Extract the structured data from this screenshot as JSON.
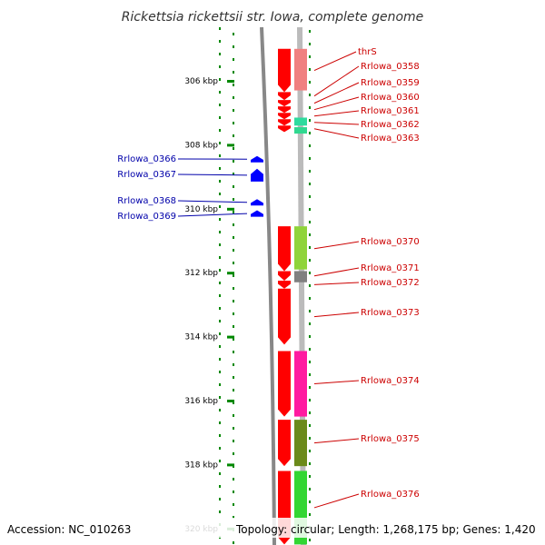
{
  "title": "Rickettsia rickettsii str. Iowa, complete genome",
  "accession": "Accession: NC_010263",
  "topology": "Topology: circular; Length: 1,268,175 bp; Genes: 1,420",
  "axis": {
    "ticks": [
      {
        "label": "306 kbp",
        "value": 306
      },
      {
        "label": "308 kbp",
        "value": 308
      },
      {
        "label": "310 kbp",
        "value": 310
      },
      {
        "label": "312 kbp",
        "value": 312
      },
      {
        "label": "314 kbp",
        "value": 314
      },
      {
        "label": "316 kbp",
        "value": 316
      },
      {
        "label": "318 kbp",
        "value": 318
      },
      {
        "label": "320 kbp",
        "value": 320
      }
    ]
  },
  "colors": {
    "forward_gene": "#ff0000",
    "reverse_gene": "#0000ff",
    "forward_label": "#cc0000",
    "reverse_label": "#0000aa",
    "tick_green": "#008800",
    "backbone": "#888888"
  },
  "forward_genes": [
    {
      "name": "thrS",
      "start": 305.0,
      "end": 306.35
    },
    {
      "name": "Rrlowa_0358",
      "start": 306.35,
      "end": 306.6
    },
    {
      "name": "Rrlowa_0359",
      "start": 306.6,
      "end": 306.8
    },
    {
      "name": "Rrlowa_0360",
      "start": 306.8,
      "end": 307.0
    },
    {
      "name": "Rrlowa_0361",
      "start": 307.0,
      "end": 307.2
    },
    {
      "name": "Rrlowa_0362",
      "start": 307.2,
      "end": 307.4
    },
    {
      "name": "Rrlowa_0363",
      "start": 307.4,
      "end": 307.6
    },
    {
      "name": "Rrlowa_0370",
      "start": 310.55,
      "end": 311.95
    },
    {
      "name": "Rrlowa_0371",
      "start": 311.95,
      "end": 312.25
    },
    {
      "name": "Rrlowa_0372",
      "start": 312.25,
      "end": 312.5
    },
    {
      "name": "Rrlowa_0373",
      "start": 312.5,
      "end": 314.25
    },
    {
      "name": "Rrlowa_0374",
      "start": 314.45,
      "end": 316.5
    },
    {
      "name": "Rrlowa_0375",
      "start": 316.6,
      "end": 318.05
    },
    {
      "name": "Rrlowa_0376",
      "start": 318.2,
      "end": 320.5
    }
  ],
  "feature_blocks": [
    {
      "color": "#f08080",
      "start": 305.0,
      "end": 306.3
    },
    {
      "color": "#2edb9e",
      "start": 307.15,
      "end": 307.4
    },
    {
      "color": "#30d890",
      "start": 307.45,
      "end": 307.65
    },
    {
      "color": "#8fd43a",
      "start": 310.55,
      "end": 311.9
    },
    {
      "color": "#808080",
      "start": 311.95,
      "end": 312.3
    },
    {
      "color": "#ff1aa0",
      "start": 314.45,
      "end": 316.5
    },
    {
      "color": "#6b8a1a",
      "start": 316.6,
      "end": 318.05
    },
    {
      "color": "#33d633",
      "start": 318.2,
      "end": 320.5
    }
  ],
  "reverse_genes": [
    {
      "name": "Rrlowa_0366",
      "start": 308.35,
      "end": 308.55
    },
    {
      "name": "Rrlowa_0367",
      "start": 308.75,
      "end": 309.15
    },
    {
      "name": "Rrlowa_0368",
      "start": 309.7,
      "end": 309.9
    },
    {
      "name": "Rrlowa_0369",
      "start": 310.05,
      "end": 310.25
    }
  ]
}
